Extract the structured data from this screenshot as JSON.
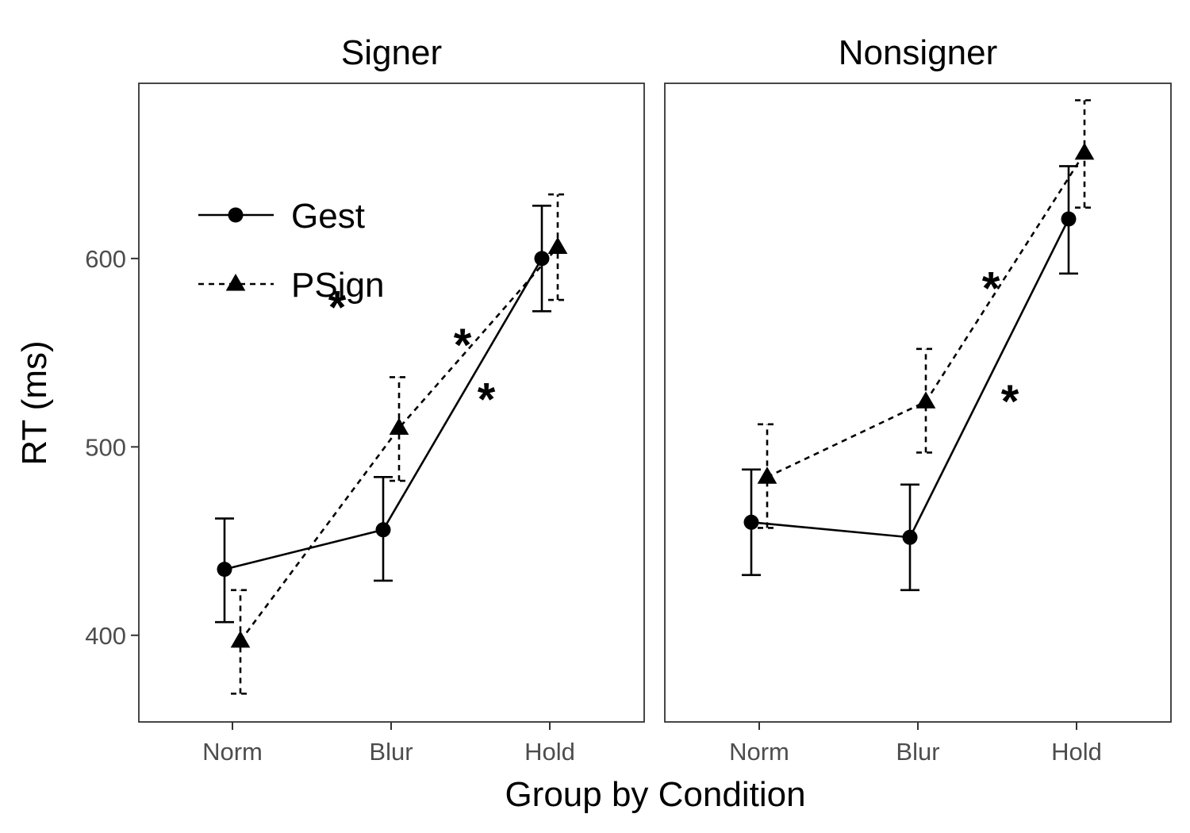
{
  "chart_data": {
    "type": "line",
    "xlabel": "Group by Condition",
    "ylabel": "RT (ms)",
    "categories": [
      "Norm",
      "Blur",
      "Hold"
    ],
    "y_ticks": [
      400,
      500,
      600
    ],
    "ylim": [
      354,
      693
    ],
    "grid": false,
    "legend": {
      "placement": "top-left inside first panel",
      "entries": [
        {
          "label": "Gest",
          "marker": "circle",
          "line": "solid"
        },
        {
          "label": "PSign",
          "marker": "triangle",
          "line": "dashed"
        }
      ]
    },
    "panels": [
      {
        "title": "Signer",
        "series": [
          {
            "name": "Gest",
            "values": [
              435,
              456,
              600
            ],
            "err_low": [
              407,
              429,
              572
            ],
            "err_high": [
              462,
              484,
              628
            ]
          },
          {
            "name": "PSign",
            "values": [
              397,
              510,
              606
            ],
            "err_low": [
              369,
              482,
              578
            ],
            "err_high": [
              424,
              537,
              634
            ]
          }
        ],
        "annotations": [
          {
            "text": "*",
            "x_between": [
              0,
              1
            ],
            "y": 580
          },
          {
            "text": "*",
            "x_between": [
              1,
              2
            ],
            "y": 560
          },
          {
            "text": "*",
            "x_between": [
              1,
              2
            ],
            "y": 531
          }
        ]
      },
      {
        "title": "Nonsigner",
        "series": [
          {
            "name": "Gest",
            "values": [
              460,
              452,
              621
            ],
            "err_low": [
              432,
              424,
              592
            ],
            "err_high": [
              488,
              480,
              649
            ]
          },
          {
            "name": "PSign",
            "values": [
              484,
              524,
              656
            ],
            "err_low": [
              457,
              497,
              627
            ],
            "err_high": [
              512,
              552,
              684
            ]
          }
        ],
        "annotations": [
          {
            "text": "*",
            "x_between": [
              1,
              2
            ],
            "y": 590
          },
          {
            "text": "*",
            "x_between": [
              1,
              2
            ],
            "y": 530
          }
        ]
      }
    ]
  }
}
